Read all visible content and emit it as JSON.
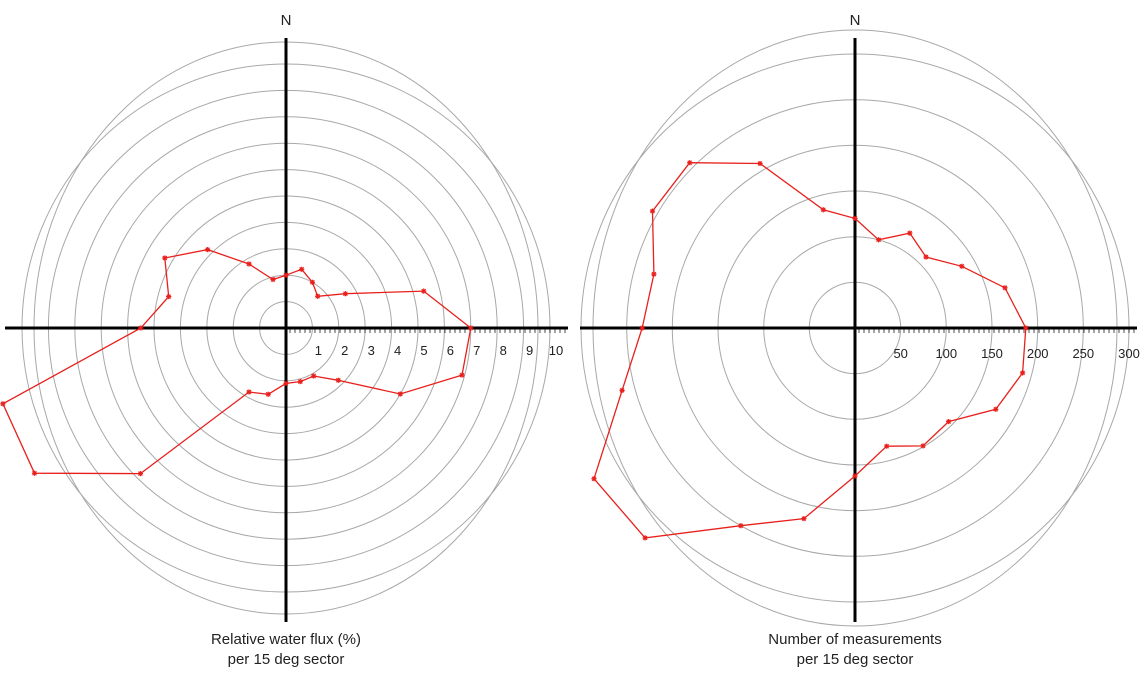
{
  "colors": {
    "series": "#e8201c",
    "axes": "#000000",
    "rings": "#a8a8a8",
    "text": "#222222"
  },
  "chart_data": [
    {
      "type": "polar-line",
      "north_label": "N",
      "caption_line1": "Relative water flux (%)",
      "caption_line2": "per 15 deg sector",
      "rmax": 10,
      "ring_values": [
        1,
        2,
        3,
        4,
        5,
        6,
        7,
        8,
        9,
        10
      ],
      "tick_labels": [
        "1",
        "2",
        "3",
        "4",
        "5",
        "6",
        "7",
        "8",
        "9",
        "10"
      ],
      "grid": true,
      "angle_step_deg": 15,
      "points": [
        {
          "bearing": 0,
          "value": 2.0
        },
        {
          "bearing": 15,
          "value": 2.3
        },
        {
          "bearing": 30,
          "value": 2.0
        },
        {
          "bearing": 45,
          "value": 1.7
        },
        {
          "bearing": 60,
          "value": 2.6
        },
        {
          "bearing": 75,
          "value": 5.4
        },
        {
          "bearing": 90,
          "value": 7.0
        },
        {
          "bearing": 105,
          "value": 6.9
        },
        {
          "bearing": 120,
          "value": 5.0
        },
        {
          "bearing": 135,
          "value": 2.8
        },
        {
          "bearing": 150,
          "value": 2.1
        },
        {
          "bearing": 165,
          "value": 2.1
        },
        {
          "bearing": 180,
          "value": 2.1
        },
        {
          "bearing": 195,
          "value": 2.6
        },
        {
          "bearing": 210,
          "value": 2.8
        },
        {
          "bearing": 225,
          "value": 7.8
        },
        {
          "bearing": 240,
          "value": 11.0
        },
        {
          "bearing": 255,
          "value": 11.1
        },
        {
          "bearing": 270,
          "value": 5.5
        },
        {
          "bearing": 285,
          "value": 4.6
        },
        {
          "bearing": 300,
          "value": 5.3
        },
        {
          "bearing": 315,
          "value": 4.2
        },
        {
          "bearing": 330,
          "value": 2.8
        },
        {
          "bearing": 345,
          "value": 1.9
        }
      ]
    },
    {
      "type": "polar-line",
      "north_label": "N",
      "caption_line1": "Number of measurements",
      "caption_line2": "per 15 deg sector",
      "rmax": 300,
      "ring_values": [
        50,
        100,
        150,
        200,
        250,
        300
      ],
      "tick_labels": [
        "50",
        "100",
        "150",
        "200",
        "250",
        "300"
      ],
      "grid": true,
      "angle_step_deg": 15,
      "points": [
        {
          "bearing": 0,
          "value": 120
        },
        {
          "bearing": 15,
          "value": 100
        },
        {
          "bearing": 30,
          "value": 120
        },
        {
          "bearing": 45,
          "value": 110
        },
        {
          "bearing": 60,
          "value": 135
        },
        {
          "bearing": 75,
          "value": 170
        },
        {
          "bearing": 90,
          "value": 187
        },
        {
          "bearing": 105,
          "value": 190
        },
        {
          "bearing": 120,
          "value": 178
        },
        {
          "bearing": 135,
          "value": 145
        },
        {
          "bearing": 150,
          "value": 149
        },
        {
          "bearing": 165,
          "value": 134
        },
        {
          "bearing": 180,
          "value": 162
        },
        {
          "bearing": 195,
          "value": 216
        },
        {
          "bearing": 210,
          "value": 250
        },
        {
          "bearing": 225,
          "value": 325
        },
        {
          "bearing": 240,
          "value": 330
        },
        {
          "bearing": 255,
          "value": 264
        },
        {
          "bearing": 270,
          "value": 233
        },
        {
          "bearing": 285,
          "value": 228
        },
        {
          "bearing": 300,
          "value": 256
        },
        {
          "bearing": 315,
          "value": 256
        },
        {
          "bearing": 330,
          "value": 208
        },
        {
          "bearing": 345,
          "value": 134
        }
      ]
    }
  ]
}
